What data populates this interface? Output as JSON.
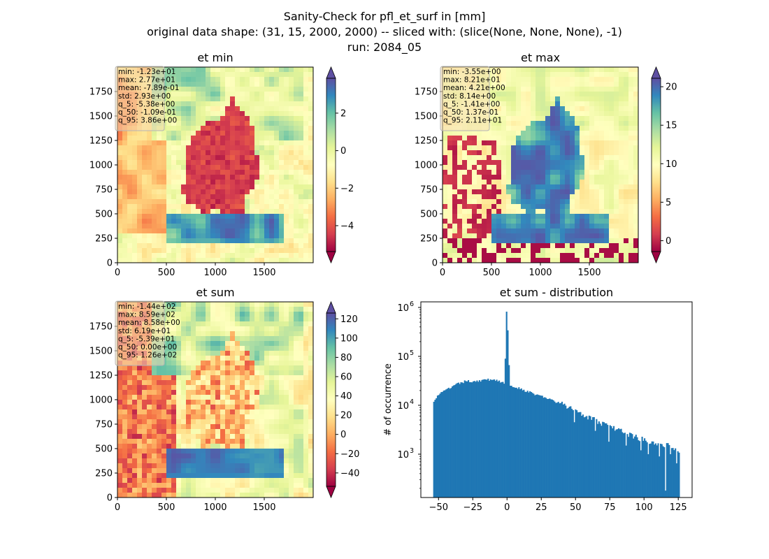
{
  "suptitle_lines": [
    "Sanity-Check for pfl_et_surf in [mm]",
    "original data shape: (31, 15, 2000, 2000) -- sliced with: (slice(None, None, None), -1)",
    "run: 2084_05"
  ],
  "colors": {
    "hist_bar": "#1f77b4",
    "cmap": [
      "#9e0142",
      "#d53e4f",
      "#f46d43",
      "#fdae61",
      "#fee08b",
      "#ffffbf",
      "#e6f598",
      "#abdda4",
      "#66c2a5",
      "#3288bd",
      "#5e4fa2"
    ]
  },
  "chart_data": [
    {
      "type": "heatmap",
      "title": "et min",
      "x_ticks": [
        "0",
        "500",
        "1000",
        "1500"
      ],
      "y_ticks": [
        "0",
        "250",
        "500",
        "750",
        "1000",
        "1250",
        "1500",
        "1750"
      ],
      "xlim": [
        0,
        2000
      ],
      "ylim": [
        0,
        2000
      ],
      "colorbar": {
        "ticks": [
          "−4",
          "−2",
          "0",
          "2"
        ],
        "tick_values": [
          -4,
          -2,
          0,
          2
        ],
        "range": [
          -5.38,
          3.86
        ],
        "extend": "both",
        "cmap": "Spectral"
      },
      "stats": [
        "min: -1.23e+01",
        "max: 2.77e+01",
        "mean: -7.89e-01",
        "std: 2.93e+00",
        "q_5: -5.38e+00",
        "q_50: -1.09e-01",
        "q_95: 3.86e+00"
      ]
    },
    {
      "type": "heatmap",
      "title": "et max",
      "x_ticks": [
        "0",
        "500",
        "1000",
        "1500"
      ],
      "y_ticks": [
        "0",
        "250",
        "500",
        "750",
        "1000",
        "1250",
        "1500",
        "1750"
      ],
      "xlim": [
        0,
        2000
      ],
      "ylim": [
        0,
        2000
      ],
      "colorbar": {
        "ticks": [
          "0",
          "5",
          "10",
          "15",
          "20"
        ],
        "tick_values": [
          0,
          5,
          10,
          15,
          20
        ],
        "range": [
          -1.41,
          21.1
        ],
        "extend": "both",
        "cmap": "Spectral"
      },
      "stats": [
        "min: -3.55e+00",
        "max: 8.21e+01",
        "mean: 4.21e+00",
        "std: 8.14e+00",
        "q_5: -1.41e+00",
        "q_50: 1.37e-01",
        "q_95: 2.11e+01"
      ]
    },
    {
      "type": "heatmap",
      "title": "et sum",
      "x_ticks": [
        "0",
        "500",
        "1000",
        "1500"
      ],
      "y_ticks": [
        "0",
        "250",
        "500",
        "750",
        "1000",
        "1250",
        "1500",
        "1750"
      ],
      "xlim": [
        0,
        2000
      ],
      "ylim": [
        0,
        2000
      ],
      "colorbar": {
        "ticks": [
          "−40",
          "−20",
          "0",
          "20",
          "40",
          "60",
          "80",
          "100",
          "120"
        ],
        "tick_values": [
          -40,
          -20,
          0,
          20,
          40,
          60,
          80,
          100,
          120
        ],
        "range": [
          -53.9,
          126
        ],
        "extend": "both",
        "cmap": "Spectral"
      },
      "stats": [
        "min: -1.44e+02",
        "max: 8.59e+02",
        "mean: 8.58e+00",
        "std: 6.19e+01",
        "q_5: -5.39e+01",
        "q_50: 0.00e+00",
        "q_95: 1.26e+02"
      ]
    },
    {
      "type": "bar",
      "title": "et sum - distribution",
      "xlabel": "",
      "ylabel": "# of occurrence",
      "yscale": "log",
      "x_ticks": [
        "−50",
        "−25",
        "0",
        "25",
        "50",
        "75",
        "100",
        "125"
      ],
      "x_tick_values": [
        -50,
        -25,
        0,
        25,
        50,
        75,
        100,
        125
      ],
      "y_ticks": [
        {
          "base": "10",
          "exp": "3",
          "value": 1000
        },
        {
          "base": "10",
          "exp": "4",
          "value": 10000
        },
        {
          "base": "10",
          "exp": "5",
          "value": 100000
        },
        {
          "base": "10",
          "exp": "6",
          "value": 1000000
        }
      ],
      "xlim": [
        -62.9,
        135.1
      ],
      "ylim": [
        130,
        1300000
      ],
      "bin_range": [
        -53.9,
        126
      ],
      "bin_count": 200,
      "bins": [
        {
          "x": -54,
          "y": 12000
        },
        {
          "x": -50,
          "y": 16500
        },
        {
          "x": -45,
          "y": 20000
        },
        {
          "x": -40,
          "y": 24000
        },
        {
          "x": -35,
          "y": 28000
        },
        {
          "x": -30,
          "y": 31000
        },
        {
          "x": -25,
          "y": 31000
        },
        {
          "x": -20,
          "y": 32000
        },
        {
          "x": -15,
          "y": 33000
        },
        {
          "x": -10,
          "y": 34000
        },
        {
          "x": -5,
          "y": 31000
        },
        {
          "x": -2,
          "y": 27000
        },
        {
          "x": 0,
          "y": 820000
        },
        {
          "x": 2,
          "y": 25000
        },
        {
          "x": 5,
          "y": 24000
        },
        {
          "x": 10,
          "y": 22000
        },
        {
          "x": 15,
          "y": 19000
        },
        {
          "x": 20,
          "y": 17000
        },
        {
          "x": 25,
          "y": 15500
        },
        {
          "x": 30,
          "y": 13500
        },
        {
          "x": 35,
          "y": 12000
        },
        {
          "x": 40,
          "y": 10500
        },
        {
          "x": 45,
          "y": 9000
        },
        {
          "x": 50,
          "y": 8000
        },
        {
          "x": 55,
          "y": 6800
        },
        {
          "x": 60,
          "y": 5700
        },
        {
          "x": 65,
          "y": 4800
        },
        {
          "x": 70,
          "y": 4200
        },
        {
          "x": 75,
          "y": 3600
        },
        {
          "x": 80,
          "y": 3200
        },
        {
          "x": 85,
          "y": 2800
        },
        {
          "x": 90,
          "y": 2500
        },
        {
          "x": 95,
          "y": 2200
        },
        {
          "x": 100,
          "y": 2000
        },
        {
          "x": 105,
          "y": 1800
        },
        {
          "x": 110,
          "y": 1700
        },
        {
          "x": 115,
          "y": 1550
        },
        {
          "x": 120,
          "y": 1450
        },
        {
          "x": 126,
          "y": 1200
        }
      ],
      "outliers": [
        {
          "x": 49,
          "y": 4500
        },
        {
          "x": 64,
          "y": 3000
        },
        {
          "x": 74,
          "y": 1800
        },
        {
          "x": 87,
          "y": 1500
        },
        {
          "x": 98,
          "y": 1200
        },
        {
          "x": 103,
          "y": 1000
        },
        {
          "x": 111,
          "y": 900
        },
        {
          "x": 116,
          "y": 180
        },
        {
          "x": 119,
          "y": 1000
        },
        {
          "x": 124,
          "y": 650
        }
      ]
    }
  ]
}
